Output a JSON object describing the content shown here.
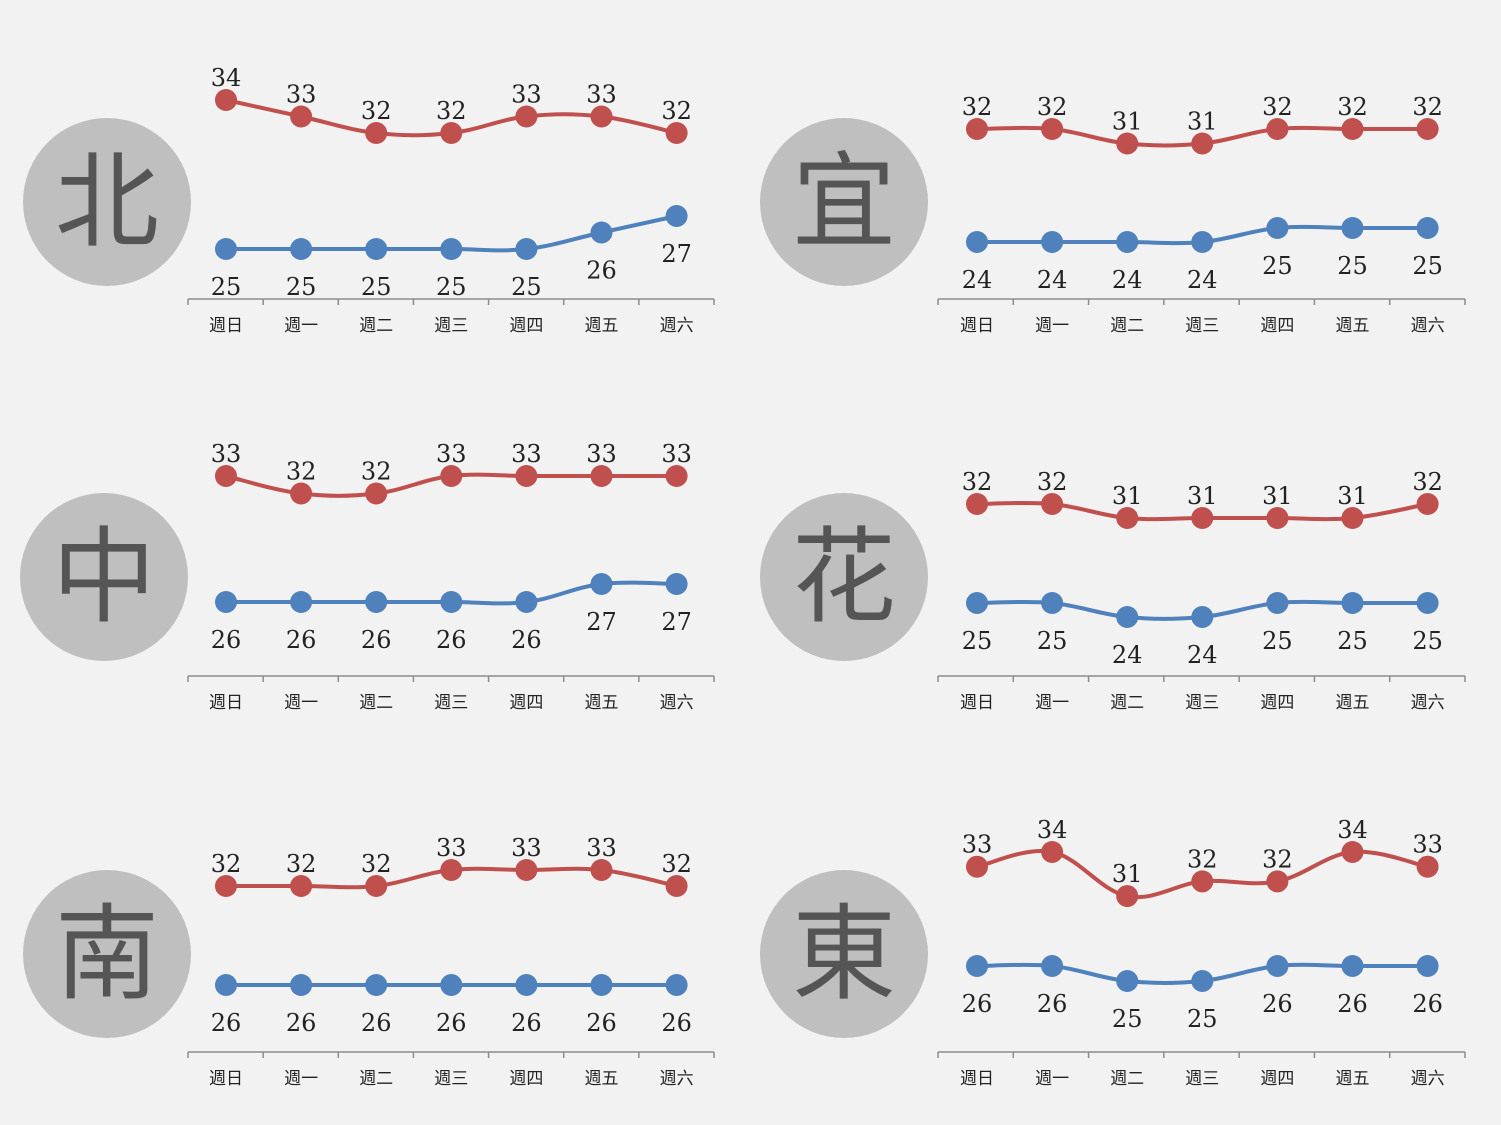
{
  "colors": {
    "background": "#f2f2f2",
    "high": "#c0504d",
    "low": "#4f81bd",
    "circle": "#bfbfbf",
    "region_text": "#555555",
    "axis": "#8c8c8c"
  },
  "chart_data": [
    {
      "type": "line",
      "region": "北",
      "categories": [
        "週日",
        "週一",
        "週二",
        "週三",
        "週四",
        "週五",
        "週六"
      ],
      "series": [
        {
          "values": [
            34,
            33,
            32,
            32,
            33,
            33,
            32
          ]
        },
        {
          "values": [
            25,
            25,
            25,
            25,
            25,
            26,
            27
          ]
        }
      ]
    },
    {
      "type": "line",
      "region": "宜",
      "categories": [
        "週日",
        "週一",
        "週二",
        "週三",
        "週四",
        "週五",
        "週六"
      ],
      "series": [
        {
          "values": [
            32,
            32,
            31,
            31,
            32,
            32,
            32
          ]
        },
        {
          "values": [
            24,
            24,
            24,
            24,
            25,
            25,
            25
          ]
        }
      ]
    },
    {
      "type": "line",
      "region": "中",
      "categories": [
        "週日",
        "週一",
        "週二",
        "週三",
        "週四",
        "週五",
        "週六"
      ],
      "series": [
        {
          "values": [
            33,
            32,
            32,
            33,
            33,
            33,
            33
          ]
        },
        {
          "values": [
            26,
            26,
            26,
            26,
            26,
            27,
            27
          ]
        }
      ]
    },
    {
      "type": "line",
      "region": "花",
      "categories": [
        "週日",
        "週一",
        "週二",
        "週三",
        "週四",
        "週五",
        "週六"
      ],
      "series": [
        {
          "values": [
            32,
            32,
            31,
            31,
            31,
            31,
            32
          ]
        },
        {
          "values": [
            25,
            25,
            24,
            24,
            25,
            25,
            25
          ]
        }
      ]
    },
    {
      "type": "line",
      "region": "南",
      "categories": [
        "週日",
        "週一",
        "週二",
        "週三",
        "週四",
        "週五",
        "週六"
      ],
      "series": [
        {
          "values": [
            32,
            32,
            32,
            33,
            33,
            33,
            32
          ]
        },
        {
          "values": [
            26,
            26,
            26,
            26,
            26,
            26,
            26
          ]
        }
      ]
    },
    {
      "type": "line",
      "region": "東",
      "categories": [
        "週日",
        "週一",
        "週二",
        "週三",
        "週四",
        "週五",
        "週六"
      ],
      "series": [
        {
          "values": [
            33,
            34,
            31,
            32,
            32,
            34,
            33
          ]
        },
        {
          "values": [
            26,
            26,
            25,
            25,
            26,
            26,
            26
          ]
        }
      ]
    }
  ]
}
